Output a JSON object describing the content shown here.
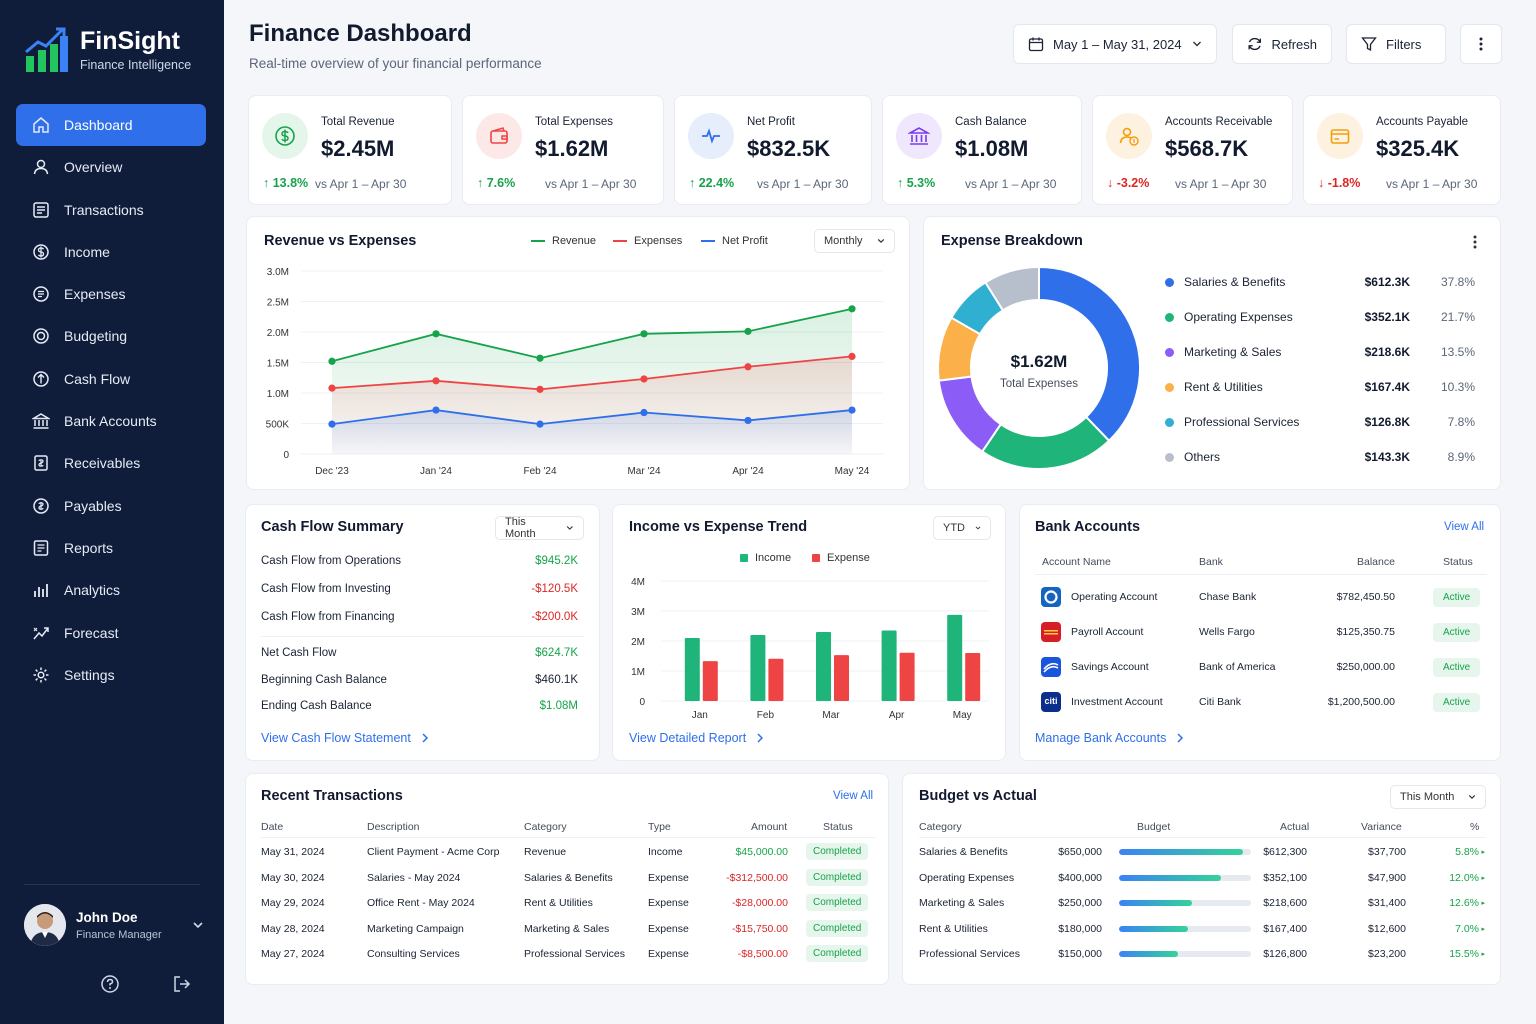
{
  "brand": {
    "name": "FinSight",
    "tagline": "Finance Intelligence"
  },
  "nav": [
    {
      "label": "Dashboard",
      "icon": "home-icon",
      "active": true
    },
    {
      "label": "Overview",
      "icon": "user-icon"
    },
    {
      "label": "Transactions",
      "icon": "list-icon"
    },
    {
      "label": "Income",
      "icon": "dollar-circle-icon"
    },
    {
      "label": "Expenses",
      "icon": "receipt-icon"
    },
    {
      "label": "Budgeting",
      "icon": "target-icon"
    },
    {
      "label": "Cash Flow",
      "icon": "cashflow-icon"
    },
    {
      "label": "Bank Accounts",
      "icon": "bank-icon"
    },
    {
      "label": "Receivables",
      "icon": "receivable-icon"
    },
    {
      "label": "Payables",
      "icon": "payable-icon"
    },
    {
      "label": "Reports",
      "icon": "report-icon"
    },
    {
      "label": "Analytics",
      "icon": "bar-chart-icon"
    },
    {
      "label": "Forecast",
      "icon": "forecast-icon"
    },
    {
      "label": "Settings",
      "icon": "gear-icon"
    }
  ],
  "user": {
    "name": "John Doe",
    "role": "Finance Manager"
  },
  "header": {
    "title": "Finance Dashboard",
    "subtitle": "Real-time overview of your financial performance",
    "date_range": "May 1 – May 31, 2024",
    "refresh_label": "Refresh",
    "filters_label": "Filters"
  },
  "kpis": [
    {
      "label": "Total Revenue",
      "value": "$2.45M",
      "delta": "↑ 13.8%",
      "direction": "up",
      "compare": "vs Apr 1 – Apr 30",
      "icon": "dollar-icon",
      "color": "#16a34a",
      "bg": "#e4f6ea"
    },
    {
      "label": "Total Expenses",
      "value": "$1.62M",
      "delta": "↑ 7.6%",
      "direction": "up",
      "compare": "vs Apr 1 – Apr 30",
      "icon": "wallet-icon",
      "color": "#ef4444",
      "bg": "#fde8e8"
    },
    {
      "label": "Net Profit",
      "value": "$832.5K",
      "delta": "↑ 22.4%",
      "direction": "up",
      "compare": "vs Apr 1 – Apr 30",
      "icon": "pulse-icon",
      "color": "#2f6fea",
      "bg": "#e6eefc"
    },
    {
      "label": "Cash Balance",
      "value": "$1.08M",
      "delta": "↑ 5.3%",
      "direction": "up",
      "compare": "vs Apr 1 – Apr 30",
      "icon": "bank-icon",
      "color": "#7c3aed",
      "bg": "#efe8fd"
    },
    {
      "label": "Accounts Receivable",
      "value": "$568.7K",
      "delta": "↓ -3.2%",
      "direction": "down",
      "compare": "vs Apr 1 – Apr 30",
      "icon": "person-dollar-icon",
      "color": "#f59e0b",
      "bg": "#fdf1df"
    },
    {
      "label": "Accounts Payable",
      "value": "$325.4K",
      "delta": "↓ -1.8%",
      "direction": "down",
      "compare": "vs Apr 1 – Apr 30",
      "icon": "card-icon",
      "color": "#f59e0b",
      "bg": "#fdf1df"
    }
  ],
  "revenue_chart": {
    "title": "Revenue vs Expenses",
    "period": "Monthly",
    "legend": [
      "Revenue",
      "Expenses",
      "Net Profit"
    ],
    "y_ticks": [
      "3.0M",
      "2.5M",
      "2.0M",
      "1.5M",
      "1.0M",
      "500K",
      "0"
    ],
    "x_ticks": [
      "Dec '23",
      "Jan '24",
      "Feb '24",
      "Mar '24",
      "Apr '24",
      "May '24"
    ]
  },
  "expense_breakdown": {
    "title": "Expense Breakdown",
    "center_value": "$1.62M",
    "center_label": "Total Expenses",
    "items": [
      {
        "name": "Salaries & Benefits",
        "amount": "$612.3K",
        "pct": "37.8%",
        "color": "#2f6fea"
      },
      {
        "name": "Operating Expenses",
        "amount": "$352.1K",
        "pct": "21.7%",
        "color": "#1fb57a"
      },
      {
        "name": "Marketing & Sales",
        "amount": "$218.6K",
        "pct": "13.5%",
        "color": "#8b5cf6"
      },
      {
        "name": "Rent & Utilities",
        "amount": "$167.4K",
        "pct": "10.3%",
        "color": "#fbb04a"
      },
      {
        "name": "Professional Services",
        "amount": "$126.8K",
        "pct": "7.8%",
        "color": "#2fb0d0"
      },
      {
        "name": "Others",
        "amount": "$143.3K",
        "pct": "8.9%",
        "color": "#b8bfcc"
      }
    ]
  },
  "cash_flow": {
    "title": "Cash Flow Summary",
    "period": "This Month",
    "rows": [
      {
        "label": "Cash Flow from Operations",
        "value": "$945.2K",
        "tone": "up"
      },
      {
        "label": "Cash Flow from Investing",
        "value": "-$120.5K",
        "tone": "down"
      },
      {
        "label": "Cash Flow from Financing",
        "value": "-$200.0K",
        "tone": "down"
      },
      {
        "label": "Net Cash Flow",
        "value": "$624.7K",
        "tone": "up"
      },
      {
        "label": "Beginning Cash Balance",
        "value": "$460.1K",
        "tone": "neutral"
      },
      {
        "label": "Ending Cash Balance",
        "value": "$1.08M",
        "tone": "up"
      }
    ],
    "link": "View Cash Flow Statement"
  },
  "trend": {
    "title": "Income vs Expense Trend",
    "period": "YTD",
    "legend": [
      "Income",
      "Expense"
    ],
    "y_ticks": [
      "4M",
      "3M",
      "2M",
      "1M",
      "0"
    ],
    "link": "View Detailed Report"
  },
  "bank_accounts": {
    "title": "Bank Accounts",
    "view_all": "View All",
    "headers": [
      "Account Name",
      "Bank",
      "Balance",
      "Status"
    ],
    "rows": [
      {
        "name": "Operating Account",
        "bank": "Chase Bank",
        "balance": "$782,450.50",
        "status": "Active",
        "logo_color": "#1565c0",
        "logo": "chase-logo-icon"
      },
      {
        "name": "Payroll Account",
        "bank": "Wells Fargo",
        "balance": "$125,350.75",
        "status": "Active",
        "logo_color": "#d71e28",
        "logo": "wells-fargo-logo-icon"
      },
      {
        "name": "Savings Account",
        "bank": "Bank of America",
        "balance": "$250,000.00",
        "status": "Active",
        "logo_color": "#1a56db",
        "logo": "boa-logo-icon"
      },
      {
        "name": "Investment Account",
        "bank": "Citi Bank",
        "balance": "$1,200,500.00",
        "status": "Active",
        "logo_color": "#0b2e8a",
        "logo": "citi-logo-icon"
      }
    ],
    "citi_text": "citi",
    "link": "Manage Bank Accounts"
  },
  "transactions": {
    "title": "Recent Transactions",
    "view_all": "View All",
    "headers": [
      "Date",
      "Description",
      "Category",
      "Type",
      "Amount",
      "Status"
    ],
    "rows": [
      {
        "date": "May 31, 2024",
        "desc": "Client Payment - Acme Corp",
        "category": "Revenue",
        "type": "Income",
        "amount": "$45,000.00",
        "tone": "up",
        "status": "Completed"
      },
      {
        "date": "May 30, 2024",
        "desc": "Salaries - May 2024",
        "category": "Salaries & Benefits",
        "type": "Expense",
        "amount": "-$312,500.00",
        "tone": "down",
        "status": "Completed"
      },
      {
        "date": "May 29, 2024",
        "desc": "Office Rent - May 2024",
        "category": "Rent & Utilities",
        "type": "Expense",
        "amount": "-$28,000.00",
        "tone": "down",
        "status": "Completed"
      },
      {
        "date": "May 28, 2024",
        "desc": "Marketing Campaign",
        "category": "Marketing & Sales",
        "type": "Expense",
        "amount": "-$15,750.00",
        "tone": "down",
        "status": "Completed"
      },
      {
        "date": "May 27, 2024",
        "desc": "Consulting Services",
        "category": "Professional Services",
        "type": "Expense",
        "amount": "-$8,500.00",
        "tone": "down",
        "status": "Completed"
      }
    ]
  },
  "budget": {
    "title": "Budget vs Actual",
    "period": "This Month",
    "headers": [
      "Category",
      "Budget",
      "Actual",
      "Variance",
      "%"
    ],
    "rows": [
      {
        "category": "Salaries & Benefits",
        "budget": "$650,000",
        "actual": "$612,300",
        "variance": "$37,700",
        "pct": "5.8%",
        "fill": 0.94
      },
      {
        "category": "Operating Expenses",
        "budget": "$400,000",
        "actual": "$352,100",
        "variance": "$47,900",
        "pct": "12.0%",
        "fill": 0.77
      },
      {
        "category": "Marketing & Sales",
        "budget": "$250,000",
        "actual": "$218,600",
        "variance": "$31,400",
        "pct": "12.6%",
        "fill": 0.55
      },
      {
        "category": "Rent & Utilities",
        "budget": "$180,000",
        "actual": "$167,400",
        "variance": "$12,600",
        "pct": "7.0%",
        "fill": 0.52
      },
      {
        "category": "Professional Services",
        "budget": "$150,000",
        "actual": "$126,800",
        "variance": "$23,200",
        "pct": "15.5%",
        "fill": 0.45
      }
    ]
  },
  "chart_data": [
    {
      "type": "line",
      "title": "Revenue vs Expenses",
      "categories": [
        "Dec '23",
        "Jan '24",
        "Feb '24",
        "Mar '24",
        "Apr '24",
        "May '24"
      ],
      "ylim": [
        0,
        3000000
      ],
      "series": [
        {
          "name": "Revenue",
          "values": [
            1520000,
            1970000,
            1570000,
            1970000,
            2010000,
            2380000
          ],
          "color": "#16a34a"
        },
        {
          "name": "Expenses",
          "values": [
            1080000,
            1200000,
            1060000,
            1230000,
            1430000,
            1600000
          ],
          "color": "#ef4444"
        },
        {
          "name": "Net Profit",
          "values": [
            490000,
            720000,
            490000,
            680000,
            550000,
            720000
          ],
          "color": "#2f6fea"
        }
      ]
    },
    {
      "type": "pie",
      "title": "Expense Breakdown",
      "categories": [
        "Salaries & Benefits",
        "Operating Expenses",
        "Marketing & Sales",
        "Rent & Utilities",
        "Professional Services",
        "Others"
      ],
      "values": [
        37.8,
        21.7,
        13.5,
        10.3,
        7.8,
        8.9
      ]
    },
    {
      "type": "bar",
      "title": "Income vs Expense Trend",
      "categories": [
        "Jan",
        "Feb",
        "Mar",
        "Apr",
        "May"
      ],
      "ylim": [
        0,
        4000000
      ],
      "series": [
        {
          "name": "Income",
          "values": [
            2100000,
            2200000,
            2300000,
            2350000,
            2870000
          ],
          "color": "#1fb57a"
        },
        {
          "name": "Expense",
          "values": [
            1330000,
            1410000,
            1530000,
            1610000,
            1600000
          ],
          "color": "#ef4444"
        }
      ]
    }
  ]
}
